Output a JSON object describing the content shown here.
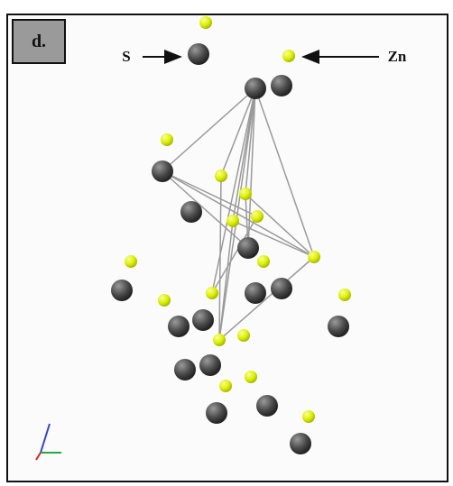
{
  "panel_label": "d.",
  "labels": {
    "sulfur": "S",
    "zinc": "Zn"
  }
}
